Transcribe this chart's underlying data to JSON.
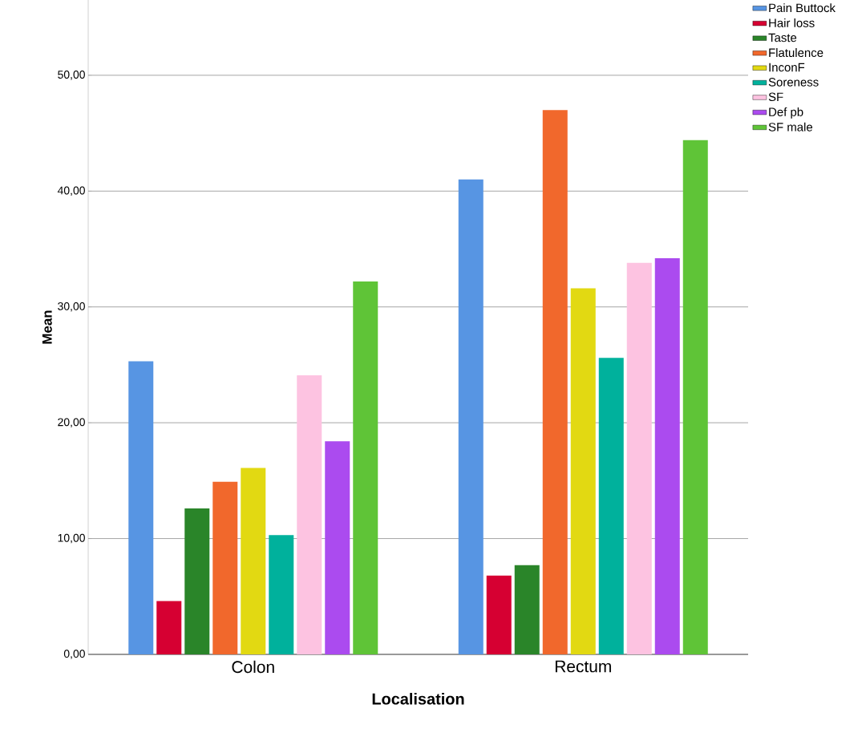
{
  "chart_data": {
    "type": "bar",
    "xlabel": "Localisation",
    "ylabel": "Mean",
    "categories": [
      "Colon",
      "Rectum"
    ],
    "series": [
      {
        "name": "Pain Buttock",
        "color": "#5795e3",
        "values": [
          25.3,
          41.0
        ]
      },
      {
        "name": "Hair loss",
        "color": "#d60032",
        "values": [
          4.6,
          6.8
        ]
      },
      {
        "name": "Taste",
        "color": "#2a8529",
        "values": [
          12.6,
          7.7
        ]
      },
      {
        "name": "Flatulence",
        "color": "#f1682c",
        "values": [
          14.9,
          47.0
        ]
      },
      {
        "name": "InconF",
        "color": "#e2d912",
        "values": [
          16.1,
          31.6
        ]
      },
      {
        "name": "Soreness",
        "color": "#00b19c",
        "values": [
          10.3,
          25.6
        ]
      },
      {
        "name": "SF",
        "color": "#fdc3e1",
        "values": [
          24.1,
          33.8
        ]
      },
      {
        "name": "Def pb",
        "color": "#ab4bef",
        "values": [
          18.4,
          34.2
        ]
      },
      {
        "name": "SF male",
        "color": "#5fc437",
        "values": [
          32.2,
          44.4
        ]
      }
    ],
    "ylim": [
      0,
      56.5
    ],
    "yticks": [
      {
        "value": 0,
        "label": "0,00"
      },
      {
        "value": 10,
        "label": "10,00"
      },
      {
        "value": 20,
        "label": "20,00"
      },
      {
        "value": 30,
        "label": "30,00"
      },
      {
        "value": 40,
        "label": "40,00"
      },
      {
        "value": 50,
        "label": "50,00"
      }
    ],
    "grid": "y",
    "legend": "top right"
  }
}
